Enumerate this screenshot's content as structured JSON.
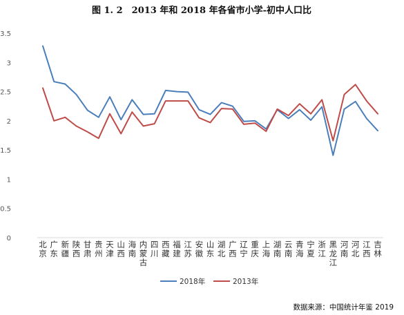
{
  "chart_data": {
    "type": "line",
    "title": "图 1. 2　2013 年和 2018 年各省市小学-初中人口比",
    "ylim": [
      0,
      3.5
    ],
    "yticks": [
      "0",
      "0.5",
      "1",
      "1.5",
      "2",
      "2.5",
      "3",
      "3.5"
    ],
    "grid": false,
    "legend_position": "bottom",
    "categories": [
      "北京",
      "广东",
      "新疆",
      "陕西",
      "甘肃",
      "贵州",
      "天津",
      "山西",
      "海南",
      "内蒙古",
      "四川",
      "西藏",
      "福建",
      "江苏",
      "安徽",
      "山东",
      "湖北",
      "广西",
      "辽宁",
      "重庆",
      "上海",
      "湖南",
      "云南",
      "青海",
      "宁夏",
      "浙江",
      "黑龙江",
      "河南",
      "河北",
      "江西",
      "吉林"
    ],
    "series": [
      {
        "name": "2018年",
        "color": "#4a7ebb",
        "values": [
          3.28,
          2.67,
          2.63,
          2.45,
          2.18,
          2.06,
          2.41,
          2.02,
          2.36,
          2.11,
          2.12,
          2.52,
          2.5,
          2.49,
          2.19,
          2.11,
          2.31,
          2.25,
          1.99,
          2.0,
          1.86,
          2.19,
          2.04,
          2.19,
          2.01,
          2.24,
          1.41,
          2.2,
          2.33,
          2.04,
          1.83
        ]
      },
      {
        "name": "2013年",
        "color": "#be4b48",
        "values": [
          2.56,
          2.0,
          2.06,
          1.91,
          1.81,
          1.7,
          2.12,
          1.78,
          2.15,
          1.91,
          1.95,
          2.34,
          2.34,
          2.34,
          2.05,
          1.97,
          2.21,
          2.2,
          1.94,
          1.96,
          1.82,
          2.2,
          2.09,
          2.29,
          2.12,
          2.36,
          1.66,
          2.45,
          2.62,
          2.34,
          2.12
        ]
      }
    ],
    "source": "数据来源：中国统计年鉴 2019"
  }
}
